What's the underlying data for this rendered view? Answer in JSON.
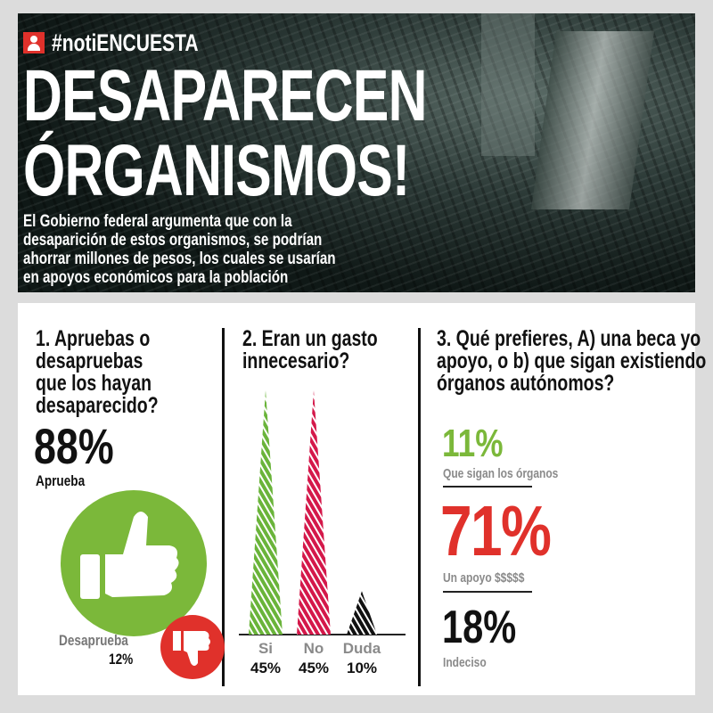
{
  "header": {
    "hashtag": "#notiENCUESTA",
    "title_line1": "DESAPARECEN",
    "title_line2": "ÓRGANISMOS!",
    "lead": "El Gobierno federal argumenta que con la\ndesaparición de estos organismos, se podrían\nahorrar millones de pesos, los cuales se usarían\nen apoyos económicos para la población"
  },
  "q1": {
    "question": "1. Apruebas o\ndesapruebas\nque los hayan\ndesaparecido?",
    "approve_pct": "88%",
    "approve_label": "Aprueba",
    "disapprove_label": "Desaprueba",
    "disapprove_pct": "12%",
    "icons": [
      "thumbs-up-icon",
      "thumbs-down-icon"
    ]
  },
  "q2": {
    "question": "2. Eran un gasto\ninnecesario?"
  },
  "q3": {
    "question": "3. Qué prefieres, A) una beca yo\napoyo, o b) que sigan existiendo\nórganos autónomos?",
    "items": [
      {
        "pct": "11%",
        "label": "Que sigan los órganos",
        "color": "#7bb83a"
      },
      {
        "pct": "71%",
        "label": "Un apoyo $$$$$",
        "color": "#e0312b"
      },
      {
        "pct": "18%",
        "label": "Indeciso",
        "color": "#111111"
      }
    ]
  },
  "colors": {
    "green": "#7bb83a",
    "red": "#e0312b",
    "crimson": "#d4184a",
    "gray": "#8a8a8a"
  },
  "chart_data": {
    "type": "bar",
    "title": "2. Eran un gasto innecesario?",
    "categories": [
      "Si",
      "No",
      "Duda"
    ],
    "values": [
      45,
      45,
      10
    ],
    "value_labels": [
      "45%",
      "45%",
      "10%"
    ],
    "colors": [
      "#6ab43a",
      "#d4184a",
      "#111111"
    ],
    "ylim": [
      0,
      45
    ],
    "grid": false
  }
}
